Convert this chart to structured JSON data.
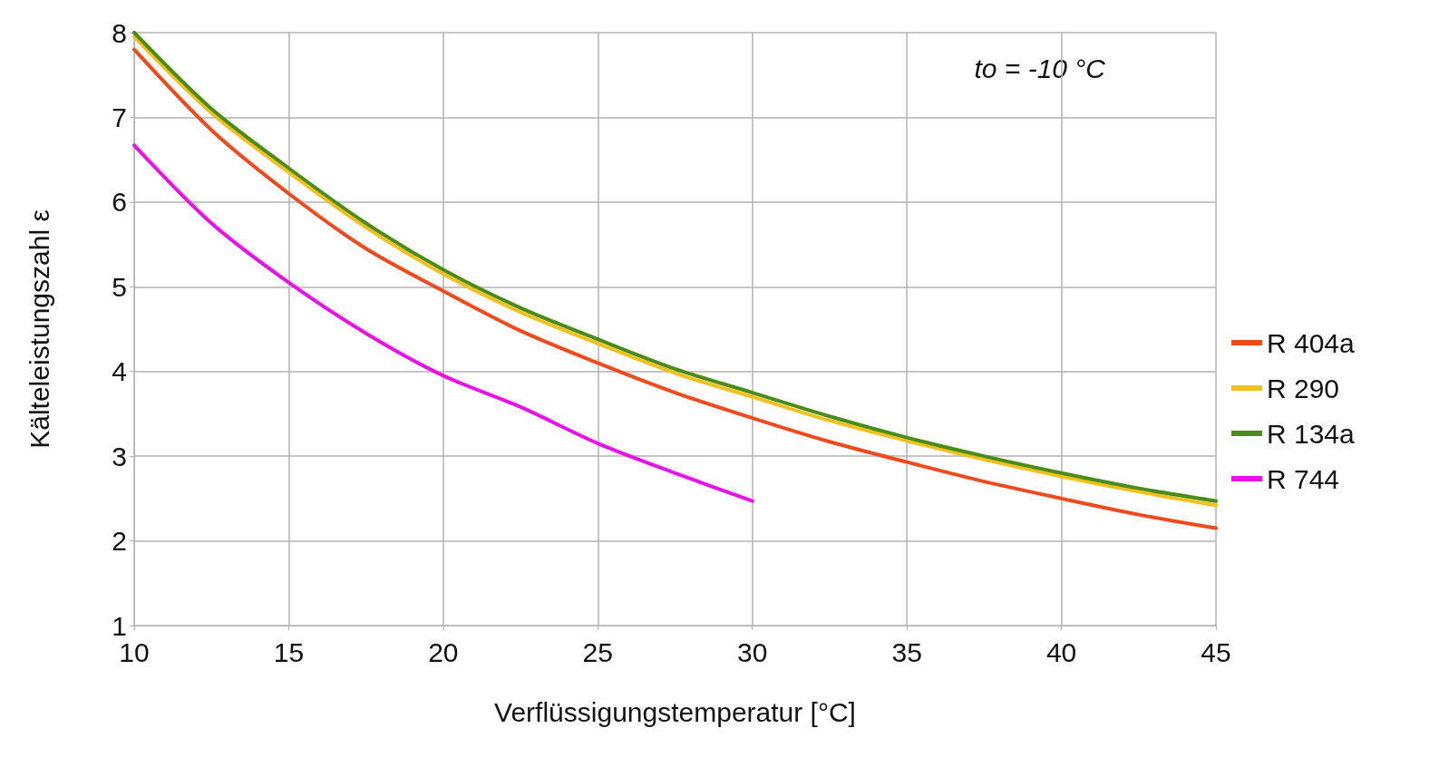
{
  "chart_data": {
    "type": "line",
    "xlabel": "Verflüssigungstemperatur [°C]",
    "ylabel": "Kälteleistungszahl ε",
    "annotations": [
      "to = -10 °C"
    ],
    "x": [
      10,
      12.5,
      15,
      17.5,
      20,
      22.5,
      25,
      27.5,
      30,
      32.5,
      35,
      37.5,
      40,
      42.5,
      45
    ],
    "series": [
      {
        "name": "R 404a",
        "color": "#ee4a1c",
        "values": [
          7.8,
          6.85,
          6.1,
          5.45,
          4.95,
          4.48,
          4.1,
          3.75,
          3.45,
          3.17,
          2.93,
          2.7,
          2.5,
          2.31,
          2.15
        ]
      },
      {
        "name": "R 290",
        "color": "#f2c21a",
        "values": [
          7.95,
          7.05,
          6.35,
          5.7,
          5.15,
          4.7,
          4.33,
          3.98,
          3.7,
          3.42,
          3.18,
          2.96,
          2.76,
          2.58,
          2.42
        ]
      },
      {
        "name": "R 134a",
        "color": "#4a8c1c",
        "values": [
          8.0,
          7.1,
          6.4,
          5.75,
          5.2,
          4.75,
          4.38,
          4.03,
          3.75,
          3.47,
          3.22,
          3.0,
          2.8,
          2.62,
          2.47
        ]
      },
      {
        "name": "R 744",
        "color": "#e812e8",
        "x": [
          10,
          12.5,
          15,
          17.5,
          20,
          22.5,
          25,
          27.5,
          30
        ],
        "values": [
          6.67,
          5.75,
          5.05,
          4.45,
          3.95,
          3.58,
          3.15,
          2.8,
          2.47
        ]
      }
    ],
    "xlim": [
      10,
      45
    ],
    "xticks": [
      10,
      15,
      20,
      25,
      30,
      35,
      40,
      45
    ],
    "ylim": [
      1,
      8
    ],
    "yticks": [
      1,
      2,
      3,
      4,
      5,
      6,
      7,
      8
    ],
    "grid": true,
    "legend": "right",
    "marker": "none",
    "line_style": "solid"
  }
}
